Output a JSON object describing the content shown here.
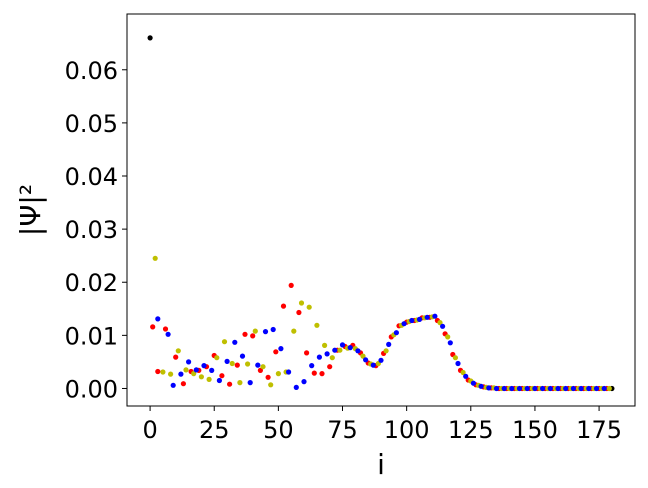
{
  "chart_data": {
    "type": "scatter",
    "title": "",
    "xlabel": "i",
    "ylabel": "|Ψ|²",
    "xlim": [
      -9,
      189
    ],
    "ylim": [
      -0.0033,
      0.0705
    ],
    "xticks": [
      0,
      25,
      50,
      75,
      100,
      125,
      150,
      175
    ],
    "yticks": [
      0.0,
      0.01,
      0.02,
      0.03,
      0.04,
      0.05,
      0.06
    ],
    "ytick_labels": [
      "0.00",
      "0.01",
      "0.02",
      "0.03",
      "0.04",
      "0.05",
      "0.06"
    ],
    "xtick_labels": [
      "0",
      "25",
      "50",
      "75",
      "100",
      "125",
      "150",
      "175"
    ],
    "grid": false,
    "legend": "none",
    "series": [
      {
        "color": "#000000",
        "x": [
          0,
          180
        ],
        "y": [
          0.066,
          0.0
        ]
      },
      {
        "color": "#ff0000",
        "x": [
          1,
          3,
          6,
          10,
          13,
          16,
          19,
          22,
          25,
          28,
          31,
          34,
          37,
          40,
          43,
          46,
          49,
          52,
          55,
          58,
          61,
          64,
          67,
          70,
          73,
          76,
          79,
          82,
          85,
          88,
          91,
          94,
          97,
          100,
          103,
          106,
          109,
          112,
          115,
          118,
          121,
          124,
          127,
          130,
          133,
          136,
          139,
          142,
          145,
          148,
          151,
          154,
          157,
          160,
          163,
          166,
          169,
          172,
          175,
          178
        ],
        "y": [
          0.0116,
          0.0032,
          0.0112,
          0.0059,
          0.0009,
          0.0032,
          0.0034,
          0.0041,
          0.0062,
          0.0024,
          0.0008,
          0.0044,
          0.0102,
          0.0099,
          0.0034,
          0.0021,
          0.0069,
          0.0155,
          0.0194,
          0.0143,
          0.0067,
          0.0029,
          0.0028,
          0.0041,
          0.0072,
          0.0079,
          0.0081,
          0.0067,
          0.0048,
          0.0043,
          0.0066,
          0.0097,
          0.0118,
          0.0125,
          0.0128,
          0.0133,
          0.0134,
          0.0128,
          0.0103,
          0.0064,
          0.0034,
          0.0016,
          0.0007,
          0.0003,
          0.0001,
          0.0,
          0.0,
          0.0,
          0.0,
          0.0,
          0.0,
          0.0,
          0.0,
          0.0,
          0.0,
          0.0,
          0.0,
          0.0,
          0.0,
          0.0
        ]
      },
      {
        "color": "#bfbf00",
        "x": [
          2,
          5,
          8,
          11,
          14,
          17,
          20,
          23,
          26,
          29,
          32,
          35,
          38,
          41,
          44,
          47,
          50,
          53,
          56,
          59,
          62,
          65,
          68,
          71,
          74,
          77,
          80,
          83,
          86,
          89,
          92,
          95,
          98,
          101,
          104,
          107,
          110,
          113,
          116,
          119,
          122,
          125,
          128,
          131,
          134,
          137,
          140,
          143,
          146,
          149,
          152,
          155,
          158,
          161,
          164,
          167,
          170,
          173,
          176,
          179
        ],
        "y": [
          0.0245,
          0.0031,
          0.0027,
          0.0071,
          0.0035,
          0.0028,
          0.0022,
          0.0017,
          0.0058,
          0.0088,
          0.0047,
          0.0011,
          0.0046,
          0.0108,
          0.0041,
          0.0007,
          0.0028,
          0.0031,
          0.0108,
          0.0161,
          0.0153,
          0.0119,
          0.0081,
          0.0058,
          0.0072,
          0.0076,
          0.0075,
          0.0061,
          0.0046,
          0.0047,
          0.0071,
          0.0101,
          0.0119,
          0.0126,
          0.0129,
          0.0133,
          0.0135,
          0.0124,
          0.0097,
          0.0058,
          0.003,
          0.0014,
          0.0006,
          0.0002,
          0.0001,
          0.0,
          0.0,
          0.0,
          0.0,
          0.0,
          0.0,
          0.0,
          0.0,
          0.0,
          0.0,
          0.0,
          0.0,
          0.0,
          0.0,
          0.0
        ]
      },
      {
        "color": "#0000ff",
        "x": [
          3,
          7,
          9,
          12,
          15,
          18,
          21,
          24,
          27,
          30,
          33,
          36,
          39,
          42,
          45,
          48,
          51,
          54,
          57,
          60,
          63,
          66,
          69,
          72,
          75,
          78,
          81,
          84,
          87,
          90,
          93,
          96,
          99,
          102,
          105,
          108,
          111,
          114,
          117,
          120,
          123,
          126,
          129,
          132,
          135,
          138,
          141,
          144,
          147,
          150,
          153,
          156,
          159,
          162,
          165,
          168,
          171,
          174,
          177
        ],
        "y": [
          0.0131,
          0.0102,
          0.0006,
          0.0027,
          0.005,
          0.0035,
          0.0043,
          0.0034,
          0.0015,
          0.0051,
          0.0087,
          0.0061,
          0.0011,
          0.0044,
          0.0107,
          0.0111,
          0.0075,
          0.0031,
          0.0002,
          0.0013,
          0.0043,
          0.0059,
          0.0065,
          0.0072,
          0.0082,
          0.0077,
          0.0071,
          0.0054,
          0.0044,
          0.0053,
          0.0083,
          0.0105,
          0.0122,
          0.0128,
          0.013,
          0.0134,
          0.0136,
          0.0117,
          0.0086,
          0.0047,
          0.0023,
          0.001,
          0.0004,
          0.0001,
          0.0,
          0.0,
          0.0,
          0.0,
          0.0,
          0.0,
          0.0,
          0.0,
          0.0,
          0.0,
          0.0,
          0.0,
          0.0,
          0.0,
          0.0
        ]
      }
    ]
  }
}
